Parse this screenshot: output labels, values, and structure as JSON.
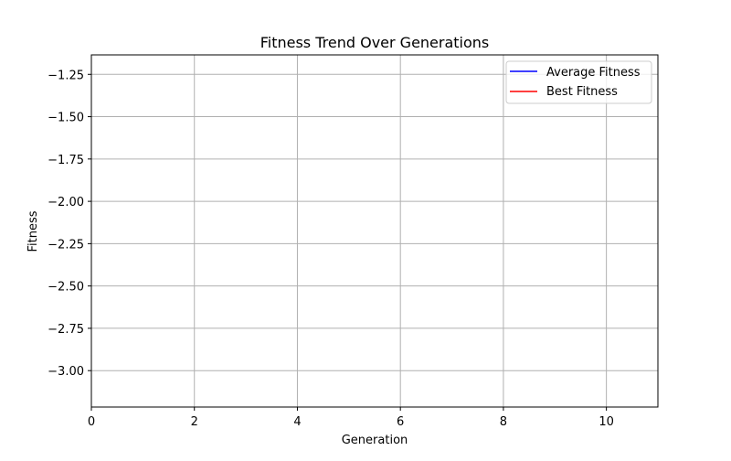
{
  "chart_data": {
    "type": "line",
    "title": "Fitness Trend Over Generations",
    "xlabel": "Generation",
    "ylabel": "Fitness",
    "xlim": [
      0,
      11
    ],
    "ylim": [
      -3.215,
      -1.135
    ],
    "xticks": [
      0,
      2,
      4,
      6,
      8,
      10
    ],
    "yticks": [
      -1.25,
      -1.5,
      -1.75,
      -2.0,
      -2.25,
      -2.5,
      -2.75,
      -3.0
    ],
    "xtick_labels": [
      "0",
      "2",
      "4",
      "6",
      "8",
      "10"
    ],
    "ytick_labels": [
      "−1.25",
      "−1.50",
      "−1.75",
      "−2.00",
      "−2.25",
      "−2.50",
      "−2.75",
      "−3.00"
    ],
    "grid": true,
    "legend_position": "top-right",
    "series": [
      {
        "name": "Average Fitness",
        "color": "#0000ff",
        "x": [],
        "y": []
      },
      {
        "name": "Best Fitness",
        "color": "#ff0000",
        "x": [],
        "y": []
      }
    ]
  }
}
